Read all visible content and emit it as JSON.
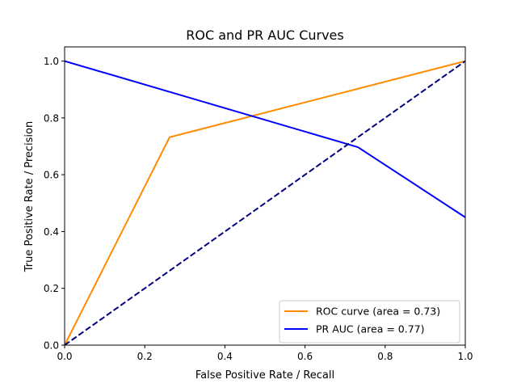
{
  "chart_data": {
    "type": "line",
    "title": "ROC and PR AUC Curves",
    "xlabel": "False Positive Rate / Recall",
    "ylabel": "True Positive Rate / Precision",
    "xlim": [
      0.0,
      1.0
    ],
    "ylim": [
      0.0,
      1.05
    ],
    "xticks": [
      "0.0",
      "0.2",
      "0.4",
      "0.6",
      "0.8",
      "1.0"
    ],
    "yticks": [
      "0.0",
      "0.2",
      "0.4",
      "0.6",
      "0.8",
      "1.0"
    ],
    "grid": false,
    "legend_position": "lower-right",
    "series": [
      {
        "name": "ROC curve (area = 0.73)",
        "color": "#ff8c00",
        "style": "solid",
        "x": [
          0.0,
          0.262,
          1.0
        ],
        "y": [
          0.0,
          0.732,
          1.0
        ]
      },
      {
        "name": "PR AUC (area = 0.77)",
        "color": "#0000ff",
        "style": "solid",
        "x": [
          0.0,
          0.732,
          1.0
        ],
        "y": [
          1.0,
          0.697,
          0.45
        ]
      },
      {
        "name": "",
        "color": "#000080",
        "style": "dashed",
        "x": [
          0.0,
          1.0
        ],
        "y": [
          0.0,
          1.0
        ]
      }
    ]
  }
}
